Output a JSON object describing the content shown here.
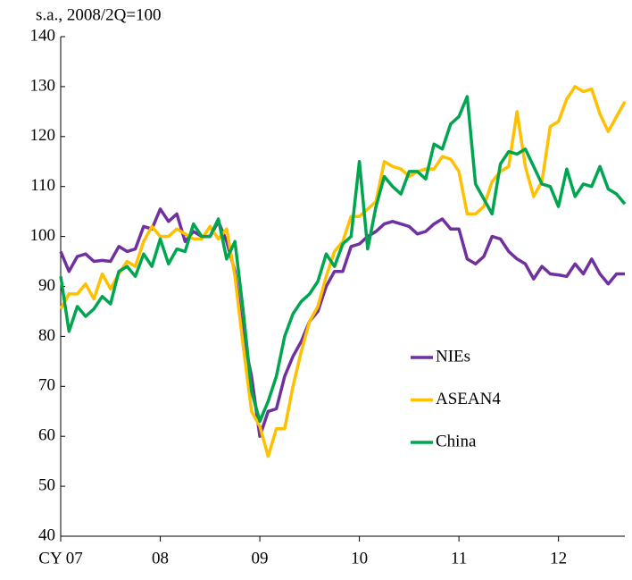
{
  "chart_data": {
    "type": "line",
    "subtitle": "s.a., 2008/2Q=100",
    "categories": [
      "CY 07",
      null,
      null,
      null,
      null,
      null,
      null,
      null,
      null,
      null,
      null,
      null,
      "08",
      null,
      null,
      null,
      null,
      null,
      null,
      null,
      null,
      null,
      null,
      null,
      "09",
      null,
      null,
      null,
      null,
      null,
      null,
      null,
      null,
      null,
      null,
      null,
      "10",
      null,
      null,
      null,
      null,
      null,
      null,
      null,
      null,
      null,
      null,
      null,
      "11",
      null,
      null,
      null,
      null,
      null,
      null,
      null,
      null,
      null,
      null,
      null,
      "12",
      null,
      null,
      null,
      null,
      null,
      null,
      null,
      null
    ],
    "series": [
      {
        "name": "NIEs",
        "color": "#7030a0",
        "values": [
          97,
          93,
          96,
          96.5,
          95,
          95.2,
          95,
          98,
          97,
          97.5,
          102,
          101.5,
          105.5,
          103,
          104.5,
          99,
          101,
          100,
          100,
          103,
          99,
          93,
          80,
          72,
          60,
          65,
          65.5,
          72,
          76,
          79,
          83,
          85,
          90,
          93,
          93,
          98,
          98.5,
          100,
          101,
          102.5,
          103,
          102.5,
          102,
          100.5,
          101,
          102.5,
          103.5,
          101.5,
          101.5,
          95.5,
          94.5,
          96,
          100,
          99.5,
          97,
          95.5,
          94.5,
          91.5,
          94,
          92.5,
          92.3,
          92,
          94.5,
          92.5,
          95.5,
          92.5,
          90.5,
          92.5,
          92.5
        ]
      },
      {
        "name": "ASEAN4",
        "color": "#ffc000",
        "values": [
          85.5,
          88.5,
          88.5,
          90.5,
          87.5,
          92.5,
          89.5,
          92.5,
          95,
          94,
          99,
          102,
          100,
          100,
          101.5,
          100.5,
          99.5,
          99.5,
          102,
          99.5,
          101.5,
          92,
          78,
          65,
          62,
          56,
          61.5,
          61.5,
          70,
          77,
          83,
          86,
          92,
          97,
          99,
          104,
          104,
          105.5,
          107,
          115,
          114,
          113.5,
          112,
          113,
          113.5,
          113.5,
          116,
          115.5,
          113,
          104.5,
          104.5,
          106,
          111,
          113,
          114,
          125,
          114,
          108,
          111,
          122,
          123,
          127.5,
          130,
          129,
          129.5,
          124.5,
          121,
          124,
          127
        ]
      },
      {
        "name": "China",
        "color": "#00a550",
        "values": [
          92,
          81,
          86,
          84,
          85.5,
          88,
          86.5,
          93,
          94,
          92,
          96.5,
          94,
          99.5,
          94.5,
          97.5,
          97,
          102.5,
          100,
          100,
          103.5,
          95.5,
          99,
          85,
          69,
          63,
          67,
          72,
          80,
          84.5,
          87,
          88.5,
          91,
          96.5,
          94,
          98.5,
          100,
          115,
          97.5,
          106,
          112,
          110,
          108.5,
          113,
          113,
          111.5,
          118.5,
          117.5,
          122.5,
          124,
          128,
          110.5,
          107.5,
          104.5,
          114.5,
          117,
          116.5,
          117.5,
          114,
          110.5,
          110,
          106,
          113.5,
          108,
          110.5,
          110,
          114,
          109.5,
          108.5,
          106.5
        ]
      }
    ],
    "ylim": [
      40,
      140
    ],
    "yticks": [
      40,
      50,
      60,
      70,
      80,
      90,
      100,
      110,
      120,
      130,
      140
    ]
  }
}
